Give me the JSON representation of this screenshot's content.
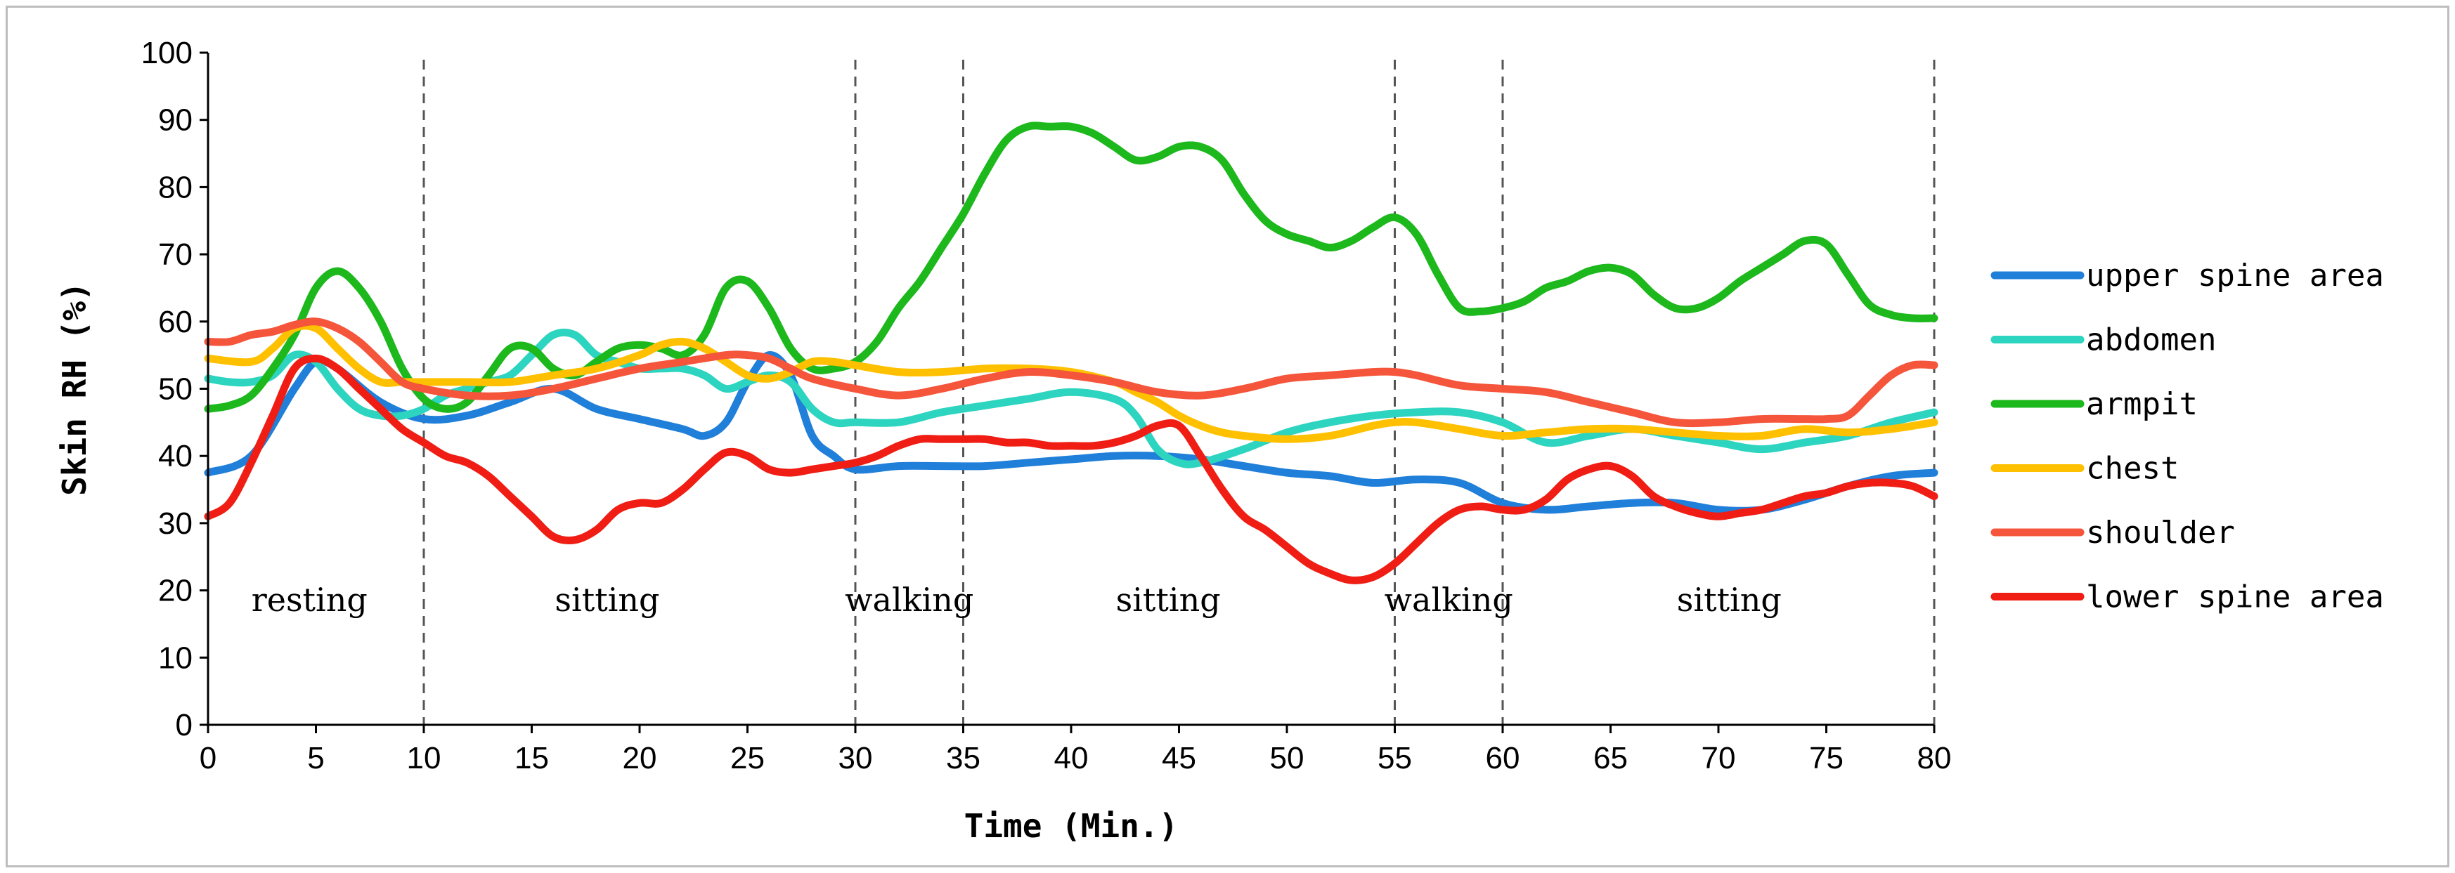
{
  "chart_data": {
    "type": "line",
    "title": "",
    "xlabel": "Time (Min.)",
    "ylabel": "Skin RH (%)",
    "xlim": [
      0,
      80
    ],
    "ylim": [
      0,
      100
    ],
    "x_ticks": [
      0,
      5,
      10,
      15,
      20,
      25,
      30,
      35,
      40,
      45,
      50,
      55,
      60,
      65,
      70,
      75,
      80
    ],
    "y_ticks": [
      0,
      10,
      20,
      30,
      40,
      50,
      60,
      70,
      80,
      90,
      100
    ],
    "grid": false,
    "legend_position": "right",
    "phase_boundaries": [
      10,
      30,
      35,
      55,
      60,
      80
    ],
    "phases": [
      {
        "label": "resting",
        "x": 4.7
      },
      {
        "label": "sitting",
        "x": 18.5
      },
      {
        "label": "walking",
        "x": 32.5
      },
      {
        "label": "sitting",
        "x": 44.5
      },
      {
        "label": "walking",
        "x": 57.5
      },
      {
        "label": "sitting",
        "x": 70.5
      }
    ],
    "series": [
      {
        "name": "upper spine area",
        "color": "#1f7fd9",
        "x": [
          0,
          2,
          4,
          5,
          6,
          8,
          10,
          12,
          14,
          16,
          18,
          20,
          22,
          23,
          24,
          25,
          26,
          27,
          28,
          29,
          30,
          32,
          34,
          36,
          38,
          40,
          42,
          44,
          46,
          48,
          50,
          52,
          54,
          56,
          58,
          60,
          62,
          64,
          66,
          68,
          70,
          72,
          74,
          76,
          78,
          80
        ],
        "values": [
          37.5,
          40,
          50,
          54,
          53,
          48,
          45.5,
          46,
          48,
          50,
          47,
          45.5,
          44,
          43,
          45,
          51,
          55,
          52,
          43,
          40,
          38,
          38.5,
          38.5,
          38.5,
          39,
          39.5,
          40,
          40,
          39.5,
          38.5,
          37.5,
          37,
          36,
          36.5,
          36,
          33,
          32,
          32.5,
          33,
          33,
          32,
          32,
          33.5,
          35.5,
          37,
          37.5
        ]
      },
      {
        "name": "abdomen",
        "color": "#2dd4bf",
        "x": [
          0,
          1,
          2,
          3,
          4,
          5,
          6,
          7,
          8,
          9,
          10,
          11,
          12,
          13,
          14,
          15,
          16,
          17,
          18,
          19,
          20,
          21,
          22,
          23,
          24,
          25,
          26,
          27,
          28,
          29,
          30,
          32,
          34,
          36,
          38,
          40,
          42,
          43,
          44,
          45,
          46,
          48,
          50,
          52,
          54,
          56,
          58,
          60,
          62,
          64,
          66,
          68,
          70,
          72,
          74,
          76,
          78,
          80
        ],
        "values": [
          51.5,
          51,
          51,
          52,
          55,
          54,
          50,
          47,
          46,
          46,
          47,
          49,
          50,
          51,
          52,
          55,
          58,
          58,
          55,
          54,
          53,
          53,
          53,
          52,
          50,
          51,
          52,
          51,
          47,
          45,
          45,
          45,
          46.5,
          47.5,
          48.5,
          49.5,
          48.5,
          46,
          41,
          39,
          39,
          41,
          43.5,
          45,
          46,
          46.5,
          46.5,
          45,
          42,
          43,
          44,
          43,
          42,
          41,
          42,
          43,
          45,
          46.5
        ]
      },
      {
        "name": "armpit",
        "color": "#1cb81c",
        "x": [
          0,
          1,
          2,
          3,
          4,
          5,
          6,
          7,
          8,
          9,
          10,
          11,
          12,
          13,
          14,
          15,
          16,
          17,
          18,
          19,
          20,
          21,
          22,
          23,
          24,
          25,
          26,
          27,
          28,
          29,
          30,
          31,
          32,
          33,
          34,
          35,
          36,
          37,
          38,
          39,
          40,
          41,
          42,
          43,
          44,
          45,
          46,
          47,
          48,
          49,
          50,
          51,
          52,
          53,
          54,
          55,
          56,
          57,
          58,
          59,
          60,
          61,
          62,
          63,
          64,
          65,
          66,
          67,
          68,
          69,
          70,
          71,
          72,
          73,
          74,
          75,
          76,
          77,
          78,
          79,
          80
        ],
        "values": [
          47,
          47.5,
          49,
          53,
          58,
          65,
          67.5,
          65,
          60,
          53,
          48.5,
          47,
          48,
          52,
          56,
          56,
          53,
          52,
          54,
          56,
          56.5,
          56,
          55,
          58,
          65,
          66,
          62,
          56,
          53,
          53,
          54,
          57,
          62,
          66,
          71,
          76,
          82,
          87,
          89,
          89,
          89,
          88,
          86,
          84,
          84.5,
          86,
          86,
          84,
          79,
          75,
          73,
          72,
          71,
          72,
          74,
          75.5,
          73,
          67,
          62,
          61.5,
          62,
          63,
          65,
          66,
          67.5,
          68,
          67,
          64,
          62,
          62,
          63.5,
          66,
          68,
          70,
          72,
          71.5,
          67,
          62.5,
          61,
          60.5,
          60.5
        ]
      },
      {
        "name": "chest",
        "color": "#ffc000",
        "x": [
          0,
          2,
          3,
          4,
          5,
          6,
          7,
          8,
          9,
          10,
          12,
          14,
          16,
          18,
          20,
          21,
          22,
          23,
          24,
          25,
          26,
          27,
          28,
          29,
          30,
          32,
          34,
          36,
          38,
          40,
          42,
          43,
          44,
          45,
          46,
          47,
          48,
          50,
          52,
          54,
          55,
          56,
          58,
          60,
          62,
          64,
          66,
          68,
          70,
          72,
          74,
          76,
          78,
          80
        ],
        "values": [
          54.5,
          54,
          56,
          59,
          59,
          56,
          53,
          51,
          51,
          51,
          51,
          51,
          52,
          53,
          55,
          56.5,
          57,
          56,
          54,
          52,
          51.5,
          52.5,
          54,
          54,
          53.5,
          52.5,
          52.5,
          53,
          53,
          52.5,
          51,
          49.5,
          48,
          46,
          44.5,
          43.5,
          43,
          42.5,
          43,
          44.5,
          45,
          45,
          44,
          43,
          43.5,
          44,
          44,
          43.5,
          43,
          43,
          44,
          43.5,
          44,
          45
        ]
      },
      {
        "name": "shoulder",
        "color": "#f4553b",
        "x": [
          0,
          1,
          2,
          3,
          4,
          5,
          6,
          7,
          8,
          9,
          10,
          12,
          14,
          16,
          18,
          20,
          22,
          24,
          25,
          26,
          27,
          28,
          30,
          32,
          34,
          36,
          38,
          40,
          42,
          44,
          46,
          48,
          50,
          52,
          54,
          55,
          56,
          58,
          60,
          62,
          64,
          66,
          68,
          70,
          72,
          74,
          75,
          76,
          77,
          78,
          79,
          80
        ],
        "values": [
          57,
          57,
          58,
          58.5,
          59.5,
          60,
          59,
          57,
          54,
          51,
          50,
          49,
          49,
          50,
          51.5,
          53,
          54,
          55,
          55,
          54.5,
          53,
          51.5,
          50,
          49,
          50,
          51.5,
          52.5,
          52,
          51,
          49.5,
          49,
          50,
          51.5,
          52,
          52.5,
          52.5,
          52,
          50.5,
          50,
          49.5,
          48,
          46.5,
          45,
          45,
          45.5,
          45.5,
          45.5,
          46,
          49,
          52,
          53.5,
          53.5
        ]
      },
      {
        "name": "lower spine area",
        "color": "#ef1d14",
        "x": [
          0,
          1,
          2,
          3,
          4,
          5,
          6,
          7,
          8,
          9,
          10,
          11,
          12,
          13,
          14,
          15,
          16,
          17,
          18,
          19,
          20,
          21,
          22,
          23,
          24,
          25,
          26,
          27,
          28,
          29,
          30,
          31,
          32,
          33,
          34,
          35,
          36,
          37,
          38,
          39,
          40,
          41,
          42,
          43,
          44,
          45,
          46,
          47,
          48,
          49,
          50,
          51,
          52,
          53,
          54,
          55,
          56,
          57,
          58,
          59,
          60,
          61,
          62,
          63,
          64,
          65,
          66,
          67,
          68,
          69,
          70,
          71,
          72,
          73,
          74,
          75,
          76,
          77,
          78,
          79,
          80
        ],
        "values": [
          31,
          33,
          39,
          46,
          53,
          54.5,
          53,
          50,
          47,
          44,
          42,
          40,
          39,
          37,
          34,
          31,
          28,
          27.5,
          29,
          32,
          33,
          33,
          35,
          38,
          40.5,
          40,
          38,
          37.5,
          38,
          38.5,
          39,
          40,
          41.5,
          42.5,
          42.5,
          42.5,
          42.5,
          42,
          42,
          41.5,
          41.5,
          41.5,
          42,
          43,
          44.5,
          44.5,
          40,
          35,
          31,
          29,
          26.5,
          24,
          22.5,
          21.5,
          22,
          24,
          27,
          30,
          32,
          32.5,
          32,
          32,
          33.5,
          36.5,
          38,
          38.5,
          37,
          34,
          32.5,
          31.5,
          31,
          31.5,
          32,
          33,
          34,
          34.5,
          35.5,
          36,
          36,
          35.5,
          34
        ]
      }
    ]
  }
}
